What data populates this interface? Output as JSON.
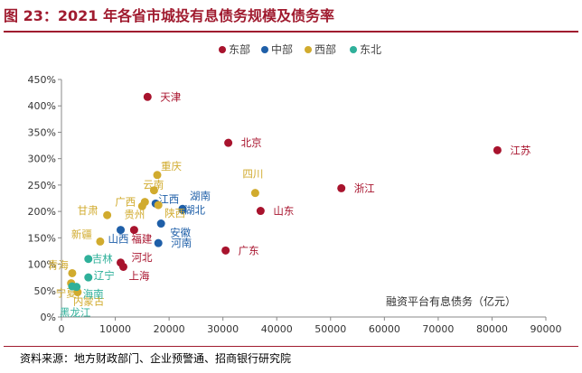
{
  "title": "图 23：2021 年各省市城投有息债务规模及债务率",
  "source": "资料来源：地方财政部门、企业预警通、招商银行研究院",
  "chart_data": {
    "type": "scatter",
    "xlabel": "融资平台有息债务（亿元）",
    "ylabel": "",
    "xlim": [
      0,
      90000
    ],
    "ylim": [
      0,
      4.5
    ],
    "xticks": [
      "0",
      "10000",
      "20000",
      "30000",
      "40000",
      "50000",
      "60000",
      "70000",
      "80000",
      "90000"
    ],
    "yticks": [
      "0%",
      "50%",
      "100%",
      "150%",
      "200%",
      "250%",
      "300%",
      "350%",
      "400%",
      "450%"
    ],
    "grid": false,
    "legend_position": "top-center",
    "series": [
      {
        "name": "东部",
        "color": "#a8132d",
        "points": [
          {
            "label": "天津",
            "x": 16000,
            "y": 4.17
          },
          {
            "label": "北京",
            "x": 31000,
            "y": 3.3
          },
          {
            "label": "江苏",
            "x": 81000,
            "y": 3.16
          },
          {
            "label": "浙江",
            "x": 52000,
            "y": 2.44
          },
          {
            "label": "山东",
            "x": 37000,
            "y": 2.01
          },
          {
            "label": "广东",
            "x": 30500,
            "y": 1.26
          },
          {
            "label": "福建",
            "x": 13500,
            "y": 1.65
          },
          {
            "label": "河北",
            "x": 11000,
            "y": 1.03
          },
          {
            "label": "上海",
            "x": 11500,
            "y": 0.95
          }
        ]
      },
      {
        "name": "中部",
        "color": "#1f5fa8",
        "points": [
          {
            "label": "江西",
            "x": 17500,
            "y": 2.15
          },
          {
            "label": "湖南",
            "x": 22500,
            "y": 2.05
          },
          {
            "label": "湖北",
            "x": 22500,
            "y": 2.03
          },
          {
            "label": "安徽",
            "x": 18500,
            "y": 1.77
          },
          {
            "label": "河南",
            "x": 18000,
            "y": 1.4
          },
          {
            "label": "山西",
            "x": 11000,
            "y": 1.65
          }
        ]
      },
      {
        "name": "西部",
        "color": "#d1ab2e",
        "points": [
          {
            "label": "重庆",
            "x": 17800,
            "y": 2.69
          },
          {
            "label": "云南",
            "x": 17200,
            "y": 2.4
          },
          {
            "label": "四川",
            "x": 36000,
            "y": 2.35
          },
          {
            "label": "广西",
            "x": 15500,
            "y": 2.18
          },
          {
            "label": "陕西",
            "x": 18000,
            "y": 2.12
          },
          {
            "label": "贵州",
            "x": 15000,
            "y": 2.1
          },
          {
            "label": "甘肃",
            "x": 8500,
            "y": 1.93
          },
          {
            "label": "新疆",
            "x": 7200,
            "y": 1.43
          },
          {
            "label": "青海",
            "x": 2000,
            "y": 0.83
          },
          {
            "label": "宁夏",
            "x": 1800,
            "y": 0.64
          },
          {
            "label": "内蒙古",
            "x": 3000,
            "y": 0.47
          }
        ]
      },
      {
        "name": "东北",
        "color": "#2fb09a",
        "points": [
          {
            "label": "吉林",
            "x": 5000,
            "y": 1.1
          },
          {
            "label": "辽宁",
            "x": 5000,
            "y": 0.75
          },
          {
            "label": "海南",
            "x": 2800,
            "y": 0.57
          },
          {
            "label": "黑龙江",
            "x": 2000,
            "y": 0.58
          }
        ]
      }
    ]
  }
}
